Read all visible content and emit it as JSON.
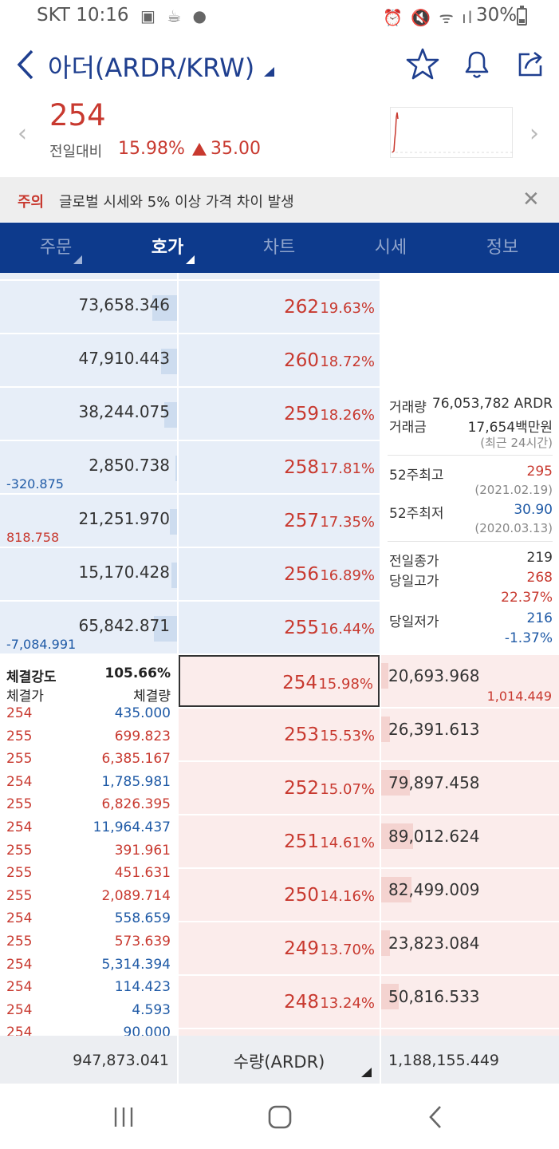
{
  "status_bar": {
    "carrier_time": "SKT 10:16",
    "battery": "30%"
  },
  "header": {
    "title": "아더(ARDR/KRW)"
  },
  "price": {
    "current": "254",
    "change_label": "전일대비",
    "change_pct": "15.98%",
    "change_amount": "35.00"
  },
  "notice": {
    "label": "주의",
    "text": "글로벌 시세와 5% 이상 가격 차이 발생"
  },
  "tabs": [
    {
      "label": "주문"
    },
    {
      "label": "호가"
    },
    {
      "label": "차트"
    },
    {
      "label": "시세"
    },
    {
      "label": "정보"
    }
  ],
  "asks": [
    {
      "price": "262",
      "pct": "19.63%",
      "qty": "73,658.346",
      "chg": "",
      "bar": 0.14
    },
    {
      "price": "260",
      "pct": "18.72%",
      "qty": "47,910.443",
      "chg": "",
      "bar": 0.09
    },
    {
      "price": "259",
      "pct": "18.26%",
      "qty": "38,244.075",
      "chg": "",
      "bar": 0.07
    },
    {
      "price": "258",
      "pct": "17.81%",
      "qty": "2,850.738",
      "chg": "-320.875",
      "bar": 0.01
    },
    {
      "price": "257",
      "pct": "17.35%",
      "qty": "21,251.970",
      "chg": "818.758",
      "bar": 0.04
    },
    {
      "price": "256",
      "pct": "16.89%",
      "qty": "15,170.428",
      "chg": "",
      "bar": 0.03
    },
    {
      "price": "255",
      "pct": "16.44%",
      "qty": "65,842.871",
      "chg": "-7,084.991",
      "bar": 0.13
    }
  ],
  "bids": [
    {
      "price": "254",
      "pct": "15.98%",
      "qty": "20,693.968",
      "chg": "1,014.449",
      "bar": 0.04
    },
    {
      "price": "253",
      "pct": "15.53%",
      "qty": "26,391.613",
      "chg": "",
      "bar": 0.05
    },
    {
      "price": "252",
      "pct": "15.07%",
      "qty": "79,897.458",
      "chg": "",
      "bar": 0.16
    },
    {
      "price": "251",
      "pct": "14.61%",
      "qty": "89,012.624",
      "chg": "",
      "bar": 0.18
    },
    {
      "price": "250",
      "pct": "14.16%",
      "qty": "82,499.009",
      "chg": "",
      "bar": 0.17
    },
    {
      "price": "249",
      "pct": "13.70%",
      "qty": "23,823.084",
      "chg": "",
      "bar": 0.05
    },
    {
      "price": "248",
      "pct": "13.24%",
      "qty": "50,816.533",
      "chg": "",
      "bar": 0.1
    }
  ],
  "stats": {
    "volume_label": "거래량",
    "volume": "76,053,782 ARDR",
    "amount_label": "거래금",
    "amount": "17,654백만원",
    "period": "(최근 24시간)",
    "high52_label": "52주최고",
    "high52": "295",
    "high52_date": "(2021.02.19)",
    "low52_label": "52주최저",
    "low52": "30.90",
    "low52_date": "(2020.03.13)",
    "prev_close_label": "전일종가",
    "prev_close": "219",
    "day_high_label": "당일고가",
    "day_high": "268",
    "day_high_pct": "22.37%",
    "day_low_label": "당일저가",
    "day_low": "216",
    "day_low_pct": "-1.37%"
  },
  "trades": {
    "strength_label": "체결강도",
    "strength": "105.66%",
    "price_header": "체결가",
    "qty_header": "체결량",
    "rows": [
      {
        "price": "254",
        "qty": "435.000",
        "side": "buy"
      },
      {
        "price": "255",
        "qty": "699.823",
        "side": "sell"
      },
      {
        "price": "255",
        "qty": "6,385.167",
        "side": "sell"
      },
      {
        "price": "254",
        "qty": "1,785.981",
        "side": "buy"
      },
      {
        "price": "255",
        "qty": "6,826.395",
        "side": "sell"
      },
      {
        "price": "254",
        "qty": "11,964.437",
        "side": "buy"
      },
      {
        "price": "255",
        "qty": "391.961",
        "side": "sell"
      },
      {
        "price": "255",
        "qty": "451.631",
        "side": "sell"
      },
      {
        "price": "255",
        "qty": "2,089.714",
        "side": "sell"
      },
      {
        "price": "254",
        "qty": "558.659",
        "side": "buy"
      },
      {
        "price": "255",
        "qty": "573.639",
        "side": "sell"
      },
      {
        "price": "254",
        "qty": "5,314.394",
        "side": "buy"
      },
      {
        "price": "254",
        "qty": "114.423",
        "side": "buy"
      },
      {
        "price": "254",
        "qty": "4.593",
        "side": "buy"
      },
      {
        "price": "254",
        "qty": "90.000",
        "side": "buy"
      }
    ]
  },
  "footer": {
    "ask_total": "947,873.041",
    "unit_label": "수량(ARDR)",
    "bid_total": "1,188,155.449"
  },
  "colors": {
    "up": "#c8392f",
    "down": "#1f5aa6",
    "nav": "#0d3a8c"
  }
}
